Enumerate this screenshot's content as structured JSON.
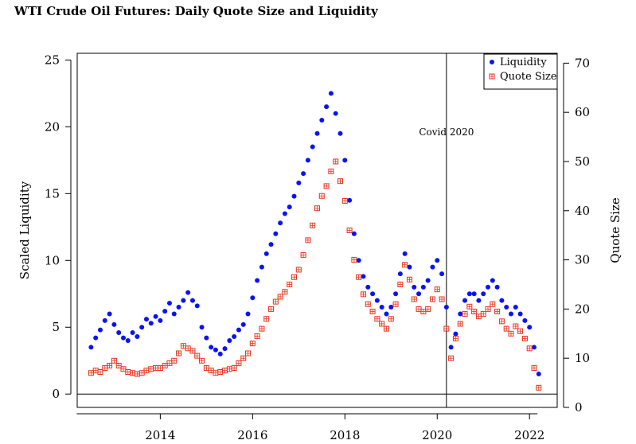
{
  "title": "WTI Crude Oil Futures: Daily Quote Size and Liquidity",
  "colors": {
    "liquidity": "#0a14f0",
    "quote_size": "#e8321e",
    "axis": "#000000",
    "background": "#ffffff"
  },
  "chart_data": {
    "type": "scatter",
    "title": "WTI Crude Oil Futures: Daily Quote Size and Liquidity",
    "xlabel": "",
    "ylabel": "Scaled Liquidity",
    "y2label": "Quote Size",
    "xlim": [
      2012.2,
      2022.6
    ],
    "ylim": [
      -1.0,
      25.5
    ],
    "y2lim": [
      0,
      72
    ],
    "x_ticks": [
      2014,
      2016,
      2018,
      2020,
      2022
    ],
    "y_ticks": [
      0,
      5,
      10,
      15,
      20,
      25
    ],
    "y2_ticks": [
      0,
      10,
      20,
      30,
      40,
      50,
      60,
      70
    ],
    "x_tick_labels": [
      "2014",
      "2016",
      "2018",
      "2020",
      "2022"
    ],
    "y_tick_labels": [
      "0",
      "5",
      "10",
      "15",
      "20",
      "25"
    ],
    "y2_tick_labels": [
      "0",
      "10",
      "20",
      "30",
      "40",
      "50",
      "60",
      "70"
    ],
    "reference_lines": [
      {
        "orientation": "horizontal",
        "axis": "left",
        "value": 0
      },
      {
        "orientation": "vertical",
        "value": 2020.2,
        "label": "Covid 2020"
      }
    ],
    "legend": {
      "placement": "top-right",
      "entries": [
        {
          "label": "Liquidity",
          "marker": "filled circle",
          "axis": "left"
        },
        {
          "label": "Quote Size",
          "marker": "square with cross",
          "axis": "right"
        }
      ]
    },
    "series": [
      {
        "name": "Liquidity",
        "axis": "left",
        "x": [
          2012.5,
          2012.6,
          2012.7,
          2012.8,
          2012.9,
          2013.0,
          2013.1,
          2013.2,
          2013.3,
          2013.4,
          2013.5,
          2013.6,
          2013.7,
          2013.8,
          2013.9,
          2014.0,
          2014.1,
          2014.2,
          2014.3,
          2014.4,
          2014.5,
          2014.6,
          2014.7,
          2014.8,
          2014.9,
          2015.0,
          2015.1,
          2015.2,
          2015.3,
          2015.4,
          2015.5,
          2015.6,
          2015.7,
          2015.8,
          2015.9,
          2016.0,
          2016.1,
          2016.2,
          2016.3,
          2016.4,
          2016.5,
          2016.6,
          2016.7,
          2016.8,
          2016.9,
          2017.0,
          2017.1,
          2017.2,
          2017.3,
          2017.4,
          2017.5,
          2017.6,
          2017.7,
          2017.8,
          2017.9,
          2018.0,
          2018.1,
          2018.2,
          2018.3,
          2018.4,
          2018.5,
          2018.6,
          2018.7,
          2018.8,
          2018.9,
          2019.0,
          2019.1,
          2019.2,
          2019.3,
          2019.4,
          2019.5,
          2019.6,
          2019.7,
          2019.8,
          2019.9,
          2020.0,
          2020.1,
          2020.2,
          2020.3,
          2020.4,
          2020.5,
          2020.6,
          2020.7,
          2020.8,
          2020.9,
          2021.0,
          2021.1,
          2021.2,
          2021.3,
          2021.4,
          2021.5,
          2021.6,
          2021.7,
          2021.8,
          2021.9,
          2022.0,
          2022.1,
          2022.2
        ],
        "y": [
          3.5,
          4.2,
          4.8,
          5.5,
          6.0,
          5.2,
          4.6,
          4.2,
          4.0,
          4.6,
          4.3,
          5.0,
          5.6,
          5.3,
          5.8,
          5.5,
          6.2,
          6.8,
          6.0,
          6.5,
          7.0,
          7.6,
          7.0,
          6.6,
          5.0,
          4.2,
          3.5,
          3.3,
          3.0,
          3.4,
          4.0,
          4.3,
          4.8,
          5.2,
          6.0,
          7.2,
          8.5,
          9.5,
          10.5,
          11.2,
          12.0,
          12.8,
          13.5,
          14.0,
          14.8,
          15.8,
          16.5,
          17.5,
          18.5,
          19.5,
          20.5,
          21.5,
          22.5,
          21.0,
          19.5,
          17.5,
          14.5,
          12.0,
          10.0,
          8.8,
          8.0,
          7.5,
          7.0,
          6.5,
          6.0,
          6.5,
          7.5,
          9.0,
          10.5,
          9.5,
          8.0,
          7.5,
          8.0,
          8.5,
          9.5,
          10.0,
          9.0,
          6.5,
          3.5,
          4.5,
          6.0,
          7.0,
          7.5,
          7.5,
          7.0,
          7.5,
          8.0,
          8.5,
          8.0,
          7.0,
          6.5,
          6.0,
          6.5,
          6.0,
          5.5,
          5.0,
          3.5,
          1.5
        ]
      },
      {
        "name": "Quote Size",
        "axis": "right",
        "x": [
          2012.5,
          2012.6,
          2012.7,
          2012.8,
          2012.9,
          2013.0,
          2013.1,
          2013.2,
          2013.3,
          2013.4,
          2013.5,
          2013.6,
          2013.7,
          2013.8,
          2013.9,
          2014.0,
          2014.1,
          2014.2,
          2014.3,
          2014.4,
          2014.5,
          2014.6,
          2014.7,
          2014.8,
          2014.9,
          2015.0,
          2015.1,
          2015.2,
          2015.3,
          2015.4,
          2015.5,
          2015.6,
          2015.7,
          2015.8,
          2015.9,
          2016.0,
          2016.1,
          2016.2,
          2016.3,
          2016.4,
          2016.5,
          2016.6,
          2016.7,
          2016.8,
          2016.9,
          2017.0,
          2017.1,
          2017.2,
          2017.3,
          2017.4,
          2017.5,
          2017.6,
          2017.7,
          2017.8,
          2017.9,
          2018.0,
          2018.1,
          2018.2,
          2018.3,
          2018.4,
          2018.5,
          2018.6,
          2018.7,
          2018.8,
          2018.9,
          2019.0,
          2019.1,
          2019.2,
          2019.3,
          2019.4,
          2019.5,
          2019.6,
          2019.7,
          2019.8,
          2019.9,
          2020.0,
          2020.1,
          2020.2,
          2020.3,
          2020.4,
          2020.5,
          2020.6,
          2020.7,
          2020.8,
          2020.9,
          2021.0,
          2021.1,
          2021.2,
          2021.3,
          2021.4,
          2021.5,
          2021.6,
          2021.7,
          2021.8,
          2021.9,
          2022.0,
          2022.1,
          2022.2
        ],
        "y": [
          7.0,
          7.5,
          7.2,
          8.0,
          8.5,
          9.5,
          8.5,
          7.8,
          7.2,
          7.0,
          6.8,
          7.0,
          7.5,
          7.8,
          8.0,
          8.0,
          8.5,
          9.0,
          9.5,
          11.0,
          12.5,
          12.0,
          11.5,
          10.5,
          9.5,
          8.0,
          7.5,
          7.0,
          7.2,
          7.5,
          7.8,
          8.0,
          9.0,
          10.0,
          11.0,
          13.0,
          14.5,
          16.0,
          18.0,
          20.0,
          21.5,
          22.5,
          23.5,
          25.0,
          26.5,
          28.0,
          31.0,
          34.0,
          37.0,
          40.5,
          43.0,
          45.0,
          48.0,
          50.0,
          46.0,
          42.0,
          36.0,
          30.0,
          26.5,
          23.0,
          21.0,
          19.5,
          18.0,
          17.0,
          16.0,
          18.0,
          21.0,
          25.0,
          29.0,
          26.0,
          22.0,
          20.0,
          19.5,
          20.0,
          22.0,
          24.0,
          22.0,
          16.0,
          10.0,
          14.0,
          17.0,
          19.0,
          20.5,
          19.5,
          18.5,
          19.0,
          20.0,
          21.0,
          19.5,
          17.5,
          16.0,
          15.0,
          16.5,
          15.5,
          14.0,
          12.0,
          8.0,
          4.0
        ]
      }
    ]
  }
}
